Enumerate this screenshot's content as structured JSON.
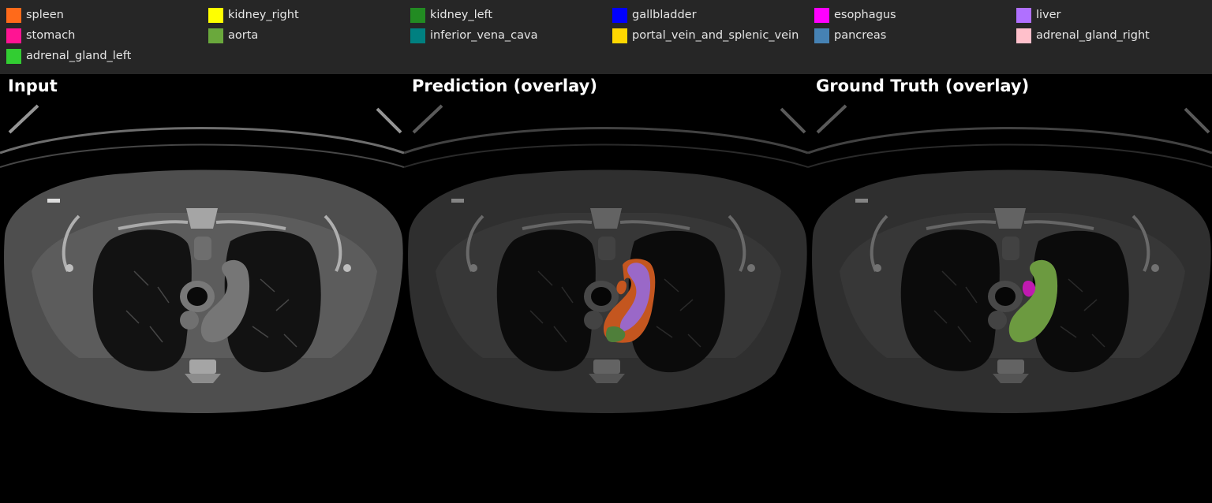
{
  "legend": {
    "items": [
      {
        "label": "spleen",
        "color": "#ff6a1a"
      },
      {
        "label": "kidney_right",
        "color": "#ffff00"
      },
      {
        "label": "kidney_left",
        "color": "#228b22"
      },
      {
        "label": "gallbladder",
        "color": "#0000ff"
      },
      {
        "label": "esophagus",
        "color": "#ff00ff"
      },
      {
        "label": "liver",
        "color": "#b070ff"
      },
      {
        "label": "stomach",
        "color": "#ff1493"
      },
      {
        "label": "aorta",
        "color": "#6aa83c"
      },
      {
        "label": "inferior_vena_cava",
        "color": "#008080"
      },
      {
        "label": "portal_vein_and_splenic_vein",
        "color": "#ffd700"
      },
      {
        "label": "pancreas",
        "color": "#4682b4"
      },
      {
        "label": "adrenal_gland_right",
        "color": "#ffc0cb"
      },
      {
        "label": "adrenal_gland_left",
        "color": "#32cd32"
      }
    ]
  },
  "panels": {
    "input": {
      "title": "Input"
    },
    "prediction": {
      "title": "Prediction (overlay)"
    },
    "ground_truth": {
      "title": "Ground Truth (overlay)"
    }
  },
  "overlay_colors": {
    "spleen": "#c4561f",
    "liver": "#9a68c8",
    "kidney_left": "#4f7f3a",
    "aorta": "#6c9a40",
    "esophagus": "#c01ab0"
  }
}
